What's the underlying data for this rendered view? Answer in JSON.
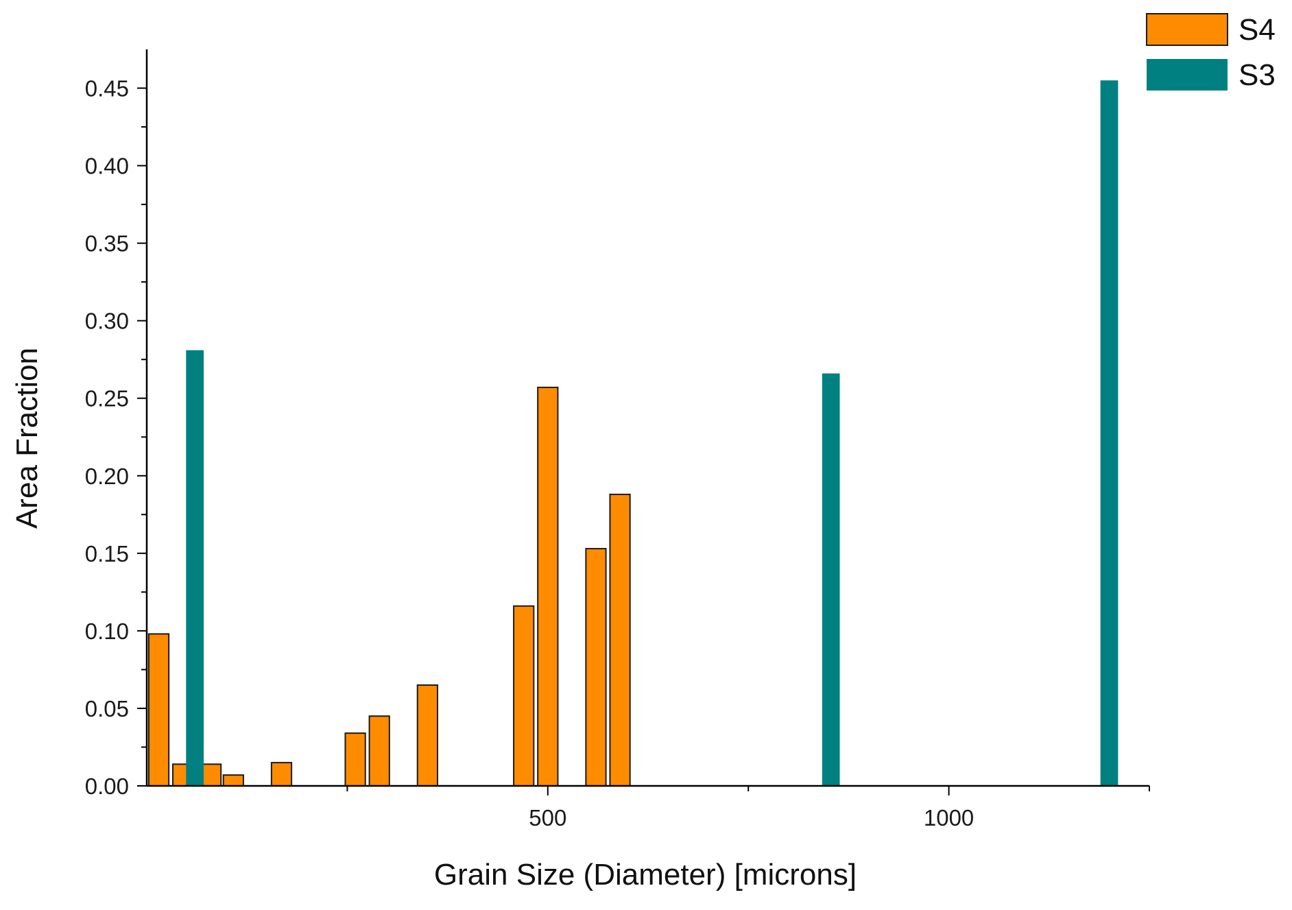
{
  "chart_data": {
    "type": "bar",
    "title": "",
    "xlabel": "Grain Size (Diameter) [microns]",
    "ylabel": "Area Fraction",
    "xlim": [
      0,
      1250
    ],
    "ylim": [
      0,
      0.475
    ],
    "x_major_ticks": [
      500,
      1000
    ],
    "x_minor_ticks": [
      250,
      750,
      1250
    ],
    "y_major_ticks": [
      "0.00",
      "0.05",
      "0.10",
      "0.15",
      "0.20",
      "0.25",
      "0.30",
      "0.35",
      "0.40",
      "0.45"
    ],
    "y_tick_values": [
      0,
      0.05,
      0.1,
      0.15,
      0.2,
      0.25,
      0.3,
      0.35,
      0.4,
      0.45
    ],
    "grid": false,
    "legend_position": "top-right",
    "series": [
      {
        "name": "S4",
        "color": "#ff8c00",
        "bar_width": 25,
        "x": [
          15,
          45,
          80,
          108,
          168,
          260,
          290,
          350,
          470,
          500,
          560,
          590
        ],
        "values": [
          0.098,
          0.014,
          0.014,
          0.007,
          0.015,
          0.034,
          0.045,
          0.065,
          0.116,
          0.257,
          0.153,
          0.188
        ]
      },
      {
        "name": "S3",
        "color": "#008080",
        "bar_width": 22,
        "x": [
          60,
          853,
          1200
        ],
        "values": [
          0.281,
          0.266,
          0.455
        ]
      }
    ]
  }
}
